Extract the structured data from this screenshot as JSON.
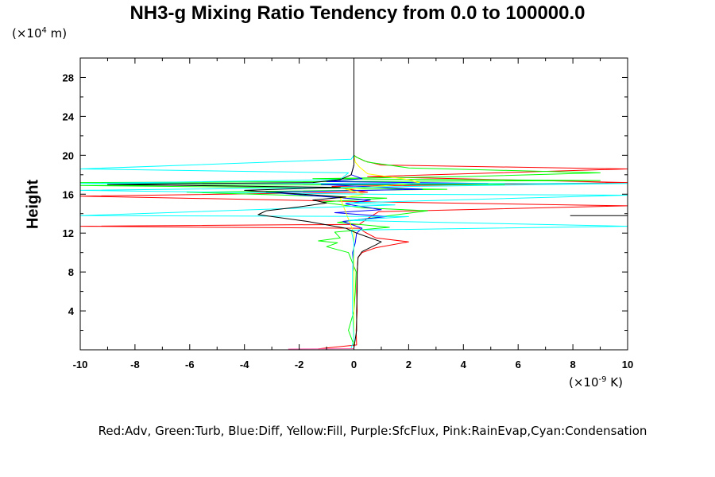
{
  "title": "NH3-g Mixing Ratio Tendency from 0.0 to 100000.0",
  "y_unit": {
    "prefix": "(×10",
    "exp": "4",
    "suffix": " m)"
  },
  "x_unit": {
    "prefix": "(×10",
    "exp": "-9",
    "suffix": " K)"
  },
  "ylabel": "Height",
  "legend_text": "Red:Adv, Green:Turb, Blue:Diff, Yellow:Fill, Purple:SfcFlux, Pink:RainEvap,Cyan:Condensation",
  "colors": {
    "adv": "#ff0000",
    "turb": "#00ff00",
    "diff": "#0000ff",
    "fill": "#ffff00",
    "sfcflux": "#a020f0",
    "rainevap": "#ff69b4",
    "condensation": "#00ffff",
    "total": "#000000"
  },
  "chart_data": {
    "type": "line",
    "title": "NH3-g Mixing Ratio Tendency from 0.0 to 100000.0",
    "xlabel": "",
    "ylabel": "Height",
    "xlim": [
      -10,
      10
    ],
    "ylim": [
      0,
      30
    ],
    "xticks": [
      -10,
      -8,
      -6,
      -4,
      -2,
      0,
      2,
      4,
      6,
      8,
      10
    ],
    "yticks": [
      4,
      8,
      12,
      16,
      20,
      24,
      28
    ],
    "grid": false,
    "legend": "bottom text",
    "series": [
      {
        "name": "Adv",
        "color": "#ff0000",
        "points": [
          [
            -1.3,
            0.1
          ],
          [
            0.1,
            0.5
          ],
          [
            0.08,
            2
          ],
          [
            0.12,
            4
          ],
          [
            0.1,
            6
          ],
          [
            0.12,
            8
          ],
          [
            0.15,
            9.5
          ],
          [
            0.3,
            10
          ],
          [
            0.8,
            10.5
          ],
          [
            2.0,
            11.1
          ],
          [
            0.8,
            11.5
          ],
          [
            0.4,
            12.1
          ],
          [
            0.2,
            12.5
          ],
          [
            -10,
            12.7
          ],
          [
            0.2,
            12.9
          ],
          [
            0.5,
            13.5
          ],
          [
            0.9,
            14.2
          ],
          [
            10,
            14.8
          ],
          [
            1.0,
            15.2
          ],
          [
            -10,
            15.8
          ],
          [
            0.5,
            16.2
          ],
          [
            -0.8,
            16.8
          ],
          [
            10,
            17.2
          ],
          [
            0.5,
            17.8
          ],
          [
            10,
            18.6
          ],
          [
            1.0,
            19.0
          ],
          [
            0.4,
            19.4
          ],
          [
            0.1,
            19.8
          ],
          [
            0,
            20
          ],
          [
            0,
            30
          ]
        ]
      },
      {
        "name": "Turb",
        "color": "#00ff00",
        "points": [
          [
            0,
            0.5
          ],
          [
            -0.2,
            2
          ],
          [
            0,
            4
          ],
          [
            0.05,
            6
          ],
          [
            0.08,
            8
          ],
          [
            -0.2,
            10
          ],
          [
            -1.0,
            10.6
          ],
          [
            -0.6,
            11.0
          ],
          [
            -1.3,
            11.2
          ],
          [
            -0.5,
            11.5
          ],
          [
            -0.7,
            12.1
          ],
          [
            1.3,
            12.6
          ],
          [
            -0.6,
            13.1
          ],
          [
            2.7,
            14.3
          ],
          [
            0.3,
            14.6
          ],
          [
            -1.2,
            15.2
          ],
          [
            1.2,
            15.6
          ],
          [
            -6.1,
            16.2
          ],
          [
            3.4,
            16.5
          ],
          [
            -10,
            16.9
          ],
          [
            5.5,
            17.0
          ],
          [
            -10,
            17.2
          ],
          [
            9.0,
            17.4
          ],
          [
            -1.5,
            17.6
          ],
          [
            4.0,
            17.8
          ],
          [
            9.0,
            18.2
          ],
          [
            2.0,
            18.7
          ],
          [
            0.5,
            19.3
          ],
          [
            0.1,
            19.8
          ],
          [
            0,
            20
          ],
          [
            0,
            30
          ]
        ]
      },
      {
        "name": "Diff",
        "color": "#0000ff",
        "points": [
          [
            0,
            0.2
          ],
          [
            0,
            4
          ],
          [
            0,
            8
          ],
          [
            -0.05,
            10
          ],
          [
            0.05,
            11
          ],
          [
            0.1,
            12
          ],
          [
            0.3,
            12.5
          ],
          [
            -0.4,
            13.2
          ],
          [
            1.2,
            13.7
          ],
          [
            -0.7,
            14.1
          ],
          [
            1.0,
            14.4
          ],
          [
            -0.3,
            15.0
          ],
          [
            0.6,
            15.4
          ],
          [
            -3.2,
            16.2
          ],
          [
            2.5,
            16.5
          ],
          [
            -1.2,
            17.0
          ],
          [
            4.9,
            17.1
          ],
          [
            -1.0,
            17.3
          ],
          [
            0.3,
            17.6
          ],
          [
            -0.1,
            18.0
          ],
          [
            0,
            19
          ],
          [
            0,
            30
          ]
        ]
      },
      {
        "name": "Fill",
        "color": "#ffff00",
        "points": [
          [
            0,
            0
          ],
          [
            0,
            4
          ],
          [
            0,
            8
          ],
          [
            0,
            12
          ],
          [
            -0.5,
            15.6
          ],
          [
            0.4,
            16.0
          ],
          [
            -0.3,
            16.5
          ],
          [
            2.4,
            17.2
          ],
          [
            2.0,
            17.5
          ],
          [
            0.5,
            18.1
          ],
          [
            0.2,
            18.8
          ],
          [
            0.05,
            19.3
          ],
          [
            0,
            20
          ],
          [
            0,
            30
          ]
        ]
      },
      {
        "name": "SfcFlux",
        "color": "#a020f0",
        "points": [
          [
            0,
            0
          ],
          [
            0,
            0.05
          ]
        ]
      },
      {
        "name": "RainEvap",
        "color": "#ff69b4",
        "points": [
          [
            -2.4,
            0.08
          ],
          [
            0,
            0.12
          ]
        ]
      },
      {
        "name": "Condensation",
        "color": "#00ffff",
        "points": [
          [
            0,
            30
          ],
          [
            0,
            20
          ],
          [
            -0.1,
            19.6
          ],
          [
            -10,
            18.6
          ],
          [
            -0.2,
            18.2
          ],
          [
            -0.5,
            17.5
          ],
          [
            -10,
            17.1
          ],
          [
            10,
            17.1
          ],
          [
            -0.4,
            16.7
          ],
          [
            -10,
            16.4
          ],
          [
            0.5,
            16.0
          ],
          [
            10,
            15.9
          ],
          [
            -0.3,
            15.1
          ],
          [
            1.5,
            14.9
          ],
          [
            -10,
            13.8
          ],
          [
            2.0,
            13.7
          ],
          [
            -0.2,
            13.3
          ],
          [
            10,
            12.7
          ],
          [
            -0.1,
            12.3
          ],
          [
            0,
            11
          ],
          [
            -0.05,
            8
          ],
          [
            -0.05,
            4
          ],
          [
            0,
            1
          ],
          [
            -0.1,
            0.2
          ]
        ]
      },
      {
        "name": "Total",
        "color": "#000000",
        "points": [
          [
            0,
            0.2
          ],
          [
            0.1,
            2
          ],
          [
            0.1,
            4
          ],
          [
            0.12,
            6
          ],
          [
            0.12,
            8
          ],
          [
            0.15,
            9.5
          ],
          [
            0.3,
            10.1
          ],
          [
            0.8,
            10.8
          ],
          [
            1.0,
            11.1
          ],
          [
            0.5,
            11.6
          ],
          [
            0.1,
            12.0
          ],
          [
            -0.3,
            12.5
          ],
          [
            -1.7,
            13.2
          ],
          [
            -3.5,
            13.9
          ],
          [
            -3.2,
            14.3
          ],
          [
            -2.0,
            14.7
          ],
          [
            -1.0,
            15.1
          ],
          [
            -1.5,
            15.4
          ],
          [
            -0.3,
            15.7
          ],
          [
            -4.0,
            16.4
          ],
          [
            -0.5,
            16.7
          ],
          [
            -9.0,
            17.0
          ],
          [
            -1.5,
            17.2
          ],
          [
            -0.5,
            17.5
          ],
          [
            -0.1,
            18.0
          ],
          [
            0,
            19
          ],
          [
            0,
            30
          ]
        ]
      },
      {
        "name": "Total-edge",
        "color": "#000000",
        "points": [
          [
            7.9,
            13.8
          ],
          [
            10,
            13.8
          ]
        ]
      }
    ]
  }
}
